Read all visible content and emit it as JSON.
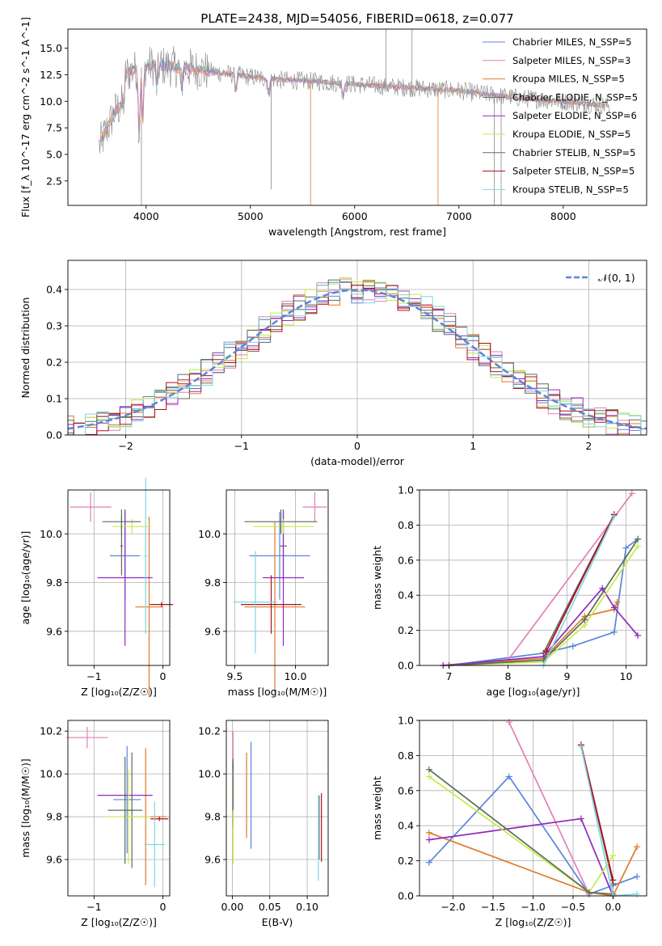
{
  "colors": [
    "#5b85d8",
    "#e27fb7",
    "#e07a2a",
    "#666666",
    "#8f2bbf",
    "#c7ea46",
    "#5a6e5a",
    "#b00f1c",
    "#7fd6df"
  ],
  "chart_data": [
    {
      "id": "spectrum",
      "type": "line",
      "title": "PLATE=2438, MJD=54056, FIBERID=0618, z=0.077",
      "xlabel": "wavelength [Angstrom, rest frame]",
      "ylabel": "Flux [f_λ 10^-17 erg cm^-2 s^-1 A^-1]",
      "xlim": [
        3250,
        8800
      ],
      "ylim": [
        0.2,
        16.8
      ],
      "xticks": [
        "4000",
        "5000",
        "6000",
        "7000",
        "8000"
      ],
      "yticks": [
        "2.5",
        "5.0",
        "7.5",
        "10.0",
        "12.5",
        "15.0"
      ],
      "legend": [
        "Chabrier MILES, N_SSP=5",
        "Salpeter MILES, N_SSP=3",
        "Kroupa MILES, N_SSP=5",
        "Chabrier ELODIE, N_SSP=5",
        "Salpeter ELODIE, N_SSP=6",
        "Kroupa ELODIE, N_SSP=5",
        "Chabrier STELIB, N_SSP=5",
        "Salpeter STELIB, N_SSP=5",
        "Kroupa STELIB, N_SSP=5"
      ],
      "legend_position": "upper-right",
      "continuum_x": [
        3550,
        3700,
        3850,
        4000,
        4100,
        4300,
        4500,
        4700,
        5000,
        5300,
        5600,
        6000,
        6500,
        7000,
        7400,
        7600,
        8000,
        8400
      ],
      "continuum_y": [
        9.5,
        12.0,
        12.8,
        13.3,
        13.4,
        13.2,
        13.0,
        12.7,
        12.3,
        12.0,
        11.9,
        11.6,
        11.3,
        11.0,
        10.5,
        10.3,
        10.0,
        9.6
      ]
    },
    {
      "id": "residuals",
      "type": "step",
      "title": "",
      "xlabel": "(data-model)/error",
      "ylabel": "Normed distribution",
      "xlim": [
        -2.5,
        2.5
      ],
      "ylim": [
        0,
        0.48
      ],
      "xticks": [
        "−2",
        "−1",
        "0",
        "1",
        "2"
      ],
      "yticks": [
        "0.0",
        "0.1",
        "0.2",
        "0.3",
        "0.4"
      ],
      "grid": true,
      "legend": [
        "𝒩(0, 1)"
      ],
      "legend_position": "upper-right",
      "bin_width": 0.1
    },
    {
      "id": "age-vs-Z",
      "type": "errorbar",
      "xlabel": "Z [log₁₀(Z/Z☉)]",
      "ylabel": "age  [log₁₀(age/yr)]",
      "xlim": [
        -1.38,
        0.1
      ],
      "ylim": [
        9.46,
        10.18
      ],
      "xticks": [
        "−1",
        "0"
      ],
      "yticks": [
        "9.6",
        "9.8",
        "10.0"
      ],
      "points": [
        {
          "x": -0.55,
          "y": 9.91,
          "xerr": 0.22,
          "yerr": 0.18
        },
        {
          "x": -1.05,
          "y": 10.11,
          "xerr": 0.3,
          "yerr": 0.06
        },
        {
          "x": -0.2,
          "y": 9.7,
          "xerr": 0.2,
          "yerr": 0.37
        },
        {
          "x": -0.6,
          "y": 9.95,
          "xerr": 0.02,
          "yerr": 0.12
        },
        {
          "x": -0.55,
          "y": 9.82,
          "xerr": 0.4,
          "yerr": 0.28
        },
        {
          "x": -0.45,
          "y": 10.03,
          "xerr": 0.28,
          "yerr": 0.03
        },
        {
          "x": -0.6,
          "y": 10.05,
          "xerr": 0.28,
          "yerr": 0.05
        },
        {
          "x": -0.02,
          "y": 9.71,
          "xerr": 0.17,
          "yerr": 0.01
        },
        {
          "x": -0.25,
          "y": 9.91,
          "xerr": 0.02,
          "yerr": 0.32
        }
      ]
    },
    {
      "id": "age-vs-mass",
      "type": "errorbar",
      "xlabel": "mass [log₁₀(M/M☉)]",
      "ylabel": "",
      "xlim": [
        9.43,
        10.27
      ],
      "ylim": [
        9.46,
        10.18
      ],
      "xticks": [
        "9.5",
        "10.0"
      ],
      "yticks": [
        "9.6",
        "9.8",
        "10.0"
      ],
      "points": [
        {
          "x": 9.87,
          "y": 9.91,
          "xerr": 0.25,
          "yerr": 0.18
        },
        {
          "x": 10.16,
          "y": 10.11,
          "xerr": 0.1,
          "yerr": 0.06
        },
        {
          "x": 9.83,
          "y": 9.7,
          "xerr": 0.25,
          "yerr": 0.35
        },
        {
          "x": 9.9,
          "y": 9.95,
          "xerr": 0.03,
          "yerr": 0.14
        },
        {
          "x": 9.9,
          "y": 9.82,
          "xerr": 0.17,
          "yerr": 0.28
        },
        {
          "x": 9.9,
          "y": 10.03,
          "xerr": 0.25,
          "yerr": 0.03
        },
        {
          "x": 9.88,
          "y": 10.05,
          "xerr": 0.3,
          "yerr": 0.05
        },
        {
          "x": 9.8,
          "y": 9.71,
          "xerr": 0.25,
          "yerr": 0.12
        },
        {
          "x": 9.67,
          "y": 9.72,
          "xerr": 0.18,
          "yerr": 0.21
        }
      ]
    },
    {
      "id": "weight-vs-age",
      "type": "line",
      "xlabel": "age  [log₁₀(age/yr)]",
      "ylabel": "mass weight",
      "xlim": [
        6.5,
        10.35
      ],
      "ylim": [
        0,
        1.0
      ],
      "xticks": [
        "7",
        "8",
        "9",
        "10"
      ],
      "yticks": [
        "0.0",
        "0.2",
        "0.4",
        "0.6",
        "0.8",
        "1.0"
      ],
      "grid": true,
      "series": [
        {
          "x": [
            7.0,
            8.6,
            9.1,
            9.8,
            10.0,
            10.2
          ],
          "y": [
            0.0,
            0.07,
            0.11,
            0.19,
            0.67,
            0.72
          ]
        },
        {
          "x": [
            8.0,
            10.1
          ],
          "y": [
            0.03,
            0.98
          ]
        },
        {
          "x": [
            6.9,
            8.6,
            9.3,
            9.8,
            9.85
          ],
          "y": [
            0.0,
            0.04,
            0.28,
            0.32,
            0.36
          ]
        },
        {
          "x": [
            8.6,
            9.8
          ],
          "y": [
            0.07,
            0.86
          ]
        },
        {
          "x": [
            6.9,
            8.6,
            9.6,
            9.8,
            10.2
          ],
          "y": [
            0.0,
            0.05,
            0.44,
            0.33,
            0.17
          ]
        },
        {
          "x": [
            7.0,
            8.6,
            9.3,
            10.2
          ],
          "y": [
            0.0,
            0.02,
            0.23,
            0.68
          ]
        },
        {
          "x": [
            7.0,
            8.6,
            9.3,
            10.2
          ],
          "y": [
            0.0,
            0.03,
            0.26,
            0.72
          ]
        },
        {
          "x": [
            8.65,
            9.8
          ],
          "y": [
            0.08,
            0.86
          ]
        },
        {
          "x": [
            8.6,
            9.8
          ],
          "y": [
            0.0,
            0.85
          ]
        }
      ]
    },
    {
      "id": "mass-vs-Z",
      "type": "errorbar",
      "xlabel": "Z [log₁₀(Z/Z☉)]",
      "ylabel": "mass [log₁₀(M/M☉)]",
      "xlim": [
        -1.38,
        0.1
      ],
      "ylim": [
        9.43,
        10.25
      ],
      "xticks": [
        "−1",
        "0"
      ],
      "yticks": [
        "9.6",
        "9.8",
        "10.0",
        "10.2"
      ],
      "points": [
        {
          "x": -0.52,
          "y": 9.88,
          "xerr": 0.2,
          "yerr": 0.25
        },
        {
          "x": -1.1,
          "y": 10.17,
          "xerr": 0.3,
          "yerr": 0.05
        },
        {
          "x": -0.25,
          "y": 9.8,
          "xerr": 0.3,
          "yerr": 0.32
        },
        {
          "x": -0.45,
          "y": 9.83,
          "xerr": 0.02,
          "yerr": 0.27
        },
        {
          "x": -0.55,
          "y": 9.9,
          "xerr": 0.4,
          "yerr": 0.01
        },
        {
          "x": -0.5,
          "y": 9.8,
          "xerr": 0.32,
          "yerr": 0.22
        },
        {
          "x": -0.55,
          "y": 9.83,
          "xerr": 0.25,
          "yerr": 0.25
        },
        {
          "x": -0.05,
          "y": 9.79,
          "xerr": 0.13,
          "yerr": 0.01
        },
        {
          "x": -0.12,
          "y": 9.67,
          "xerr": 0.15,
          "yerr": 0.2
        }
      ]
    },
    {
      "id": "mass-vs-EBV",
      "type": "errorbar",
      "xlabel": "E(B-V)",
      "ylabel": "",
      "xlim": [
        -0.008,
        0.128
      ],
      "ylim": [
        9.43,
        10.25
      ],
      "xticks": [
        "0.00",
        "0.05",
        "0.10"
      ],
      "yticks": [
        "9.6",
        "9.8",
        "10.0",
        "10.2"
      ],
      "points": [
        {
          "x": 0.025,
          "y": 9.9,
          "xerr": 0,
          "yerr": 0.25
        },
        {
          "x": 0.001,
          "y": 10.1,
          "xerr": 0,
          "yerr": 0.1
        },
        {
          "x": 0.019,
          "y": 9.9,
          "xerr": 0,
          "yerr": 0.2
        },
        {
          "x": 0.116,
          "y": 9.75,
          "xerr": 0,
          "yerr": 0.15
        },
        {
          "x": 0.001,
          "y": 9.9,
          "xerr": 0,
          "yerr": 0.15
        },
        {
          "x": 0.001,
          "y": 9.8,
          "xerr": 0,
          "yerr": 0.22
        },
        {
          "x": 0.001,
          "y": 9.95,
          "xerr": 0,
          "yerr": 0.12
        },
        {
          "x": 0.119,
          "y": 9.75,
          "xerr": 0,
          "yerr": 0.16
        },
        {
          "x": 0.115,
          "y": 9.7,
          "xerr": 0,
          "yerr": 0.2
        }
      ]
    },
    {
      "id": "weight-vs-Z",
      "type": "line",
      "xlabel": "Z [log₁₀(Z/Z☉)]",
      "ylabel": "mass weight",
      "xlim": [
        -2.42,
        0.42
      ],
      "ylim": [
        0,
        1.0
      ],
      "xticks": [
        "−2.0",
        "−1.5",
        "−1.0",
        "−0.5",
        "0.0"
      ],
      "yticks": [
        "0.0",
        "0.2",
        "0.4",
        "0.6",
        "0.8",
        "1.0"
      ],
      "grid": true,
      "series": [
        {
          "x": [
            -2.3,
            -1.3,
            -0.3,
            0.0,
            0.3
          ],
          "y": [
            0.19,
            0.68,
            0.01,
            0.06,
            0.11
          ]
        },
        {
          "x": [
            -1.3,
            -0.3
          ],
          "y": [
            0.99,
            0.01
          ]
        },
        {
          "x": [
            -2.3,
            -0.3,
            0.0,
            0.3
          ],
          "y": [
            0.36,
            0.02,
            0.0,
            0.28
          ]
        },
        {
          "x": [
            -0.4,
            0.0
          ],
          "y": [
            0.86,
            0.07
          ]
        },
        {
          "x": [
            -2.3,
            -0.4,
            0.0
          ],
          "y": [
            0.32,
            0.44,
            0.0
          ]
        },
        {
          "x": [
            -2.3,
            -0.3,
            0.0
          ],
          "y": [
            0.68,
            0.02,
            0.23
          ]
        },
        {
          "x": [
            -2.3,
            -0.3,
            0.0
          ],
          "y": [
            0.72,
            0.02,
            0.01
          ]
        },
        {
          "x": [
            -0.4,
            0.0
          ],
          "y": [
            0.86,
            0.09
          ]
        },
        {
          "x": [
            -0.4,
            0.0,
            0.3
          ],
          "y": [
            0.85,
            0.0,
            0.01
          ]
        }
      ]
    }
  ]
}
